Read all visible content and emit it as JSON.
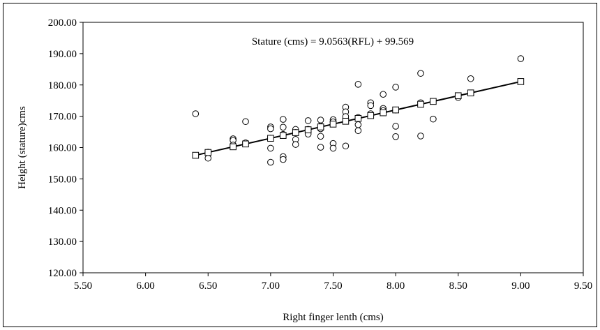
{
  "chart_data": {
    "type": "scatter",
    "title": "",
    "xlabel": "Right finger lenth (cms)",
    "ylabel": "Height (stature)cms",
    "xlim": [
      5.5,
      9.5
    ],
    "ylim": [
      120,
      200
    ],
    "x_ticks": [
      "5.50",
      "6.00",
      "6.50",
      "7.00",
      "7.50",
      "8.00",
      "8.50",
      "9.00",
      "9.50"
    ],
    "y_ticks": [
      "120.00",
      "130.00",
      "140.00",
      "150.00",
      "160.00",
      "170.00",
      "180.00",
      "190.00",
      "200.00"
    ],
    "grid": false,
    "legend": "none",
    "annotation": "Stature (cms) = 9.0563(RFL) + 99.569",
    "regression": {
      "slope": 9.0563,
      "intercept": 99.569
    },
    "series": [
      {
        "marker": "circle",
        "points": [
          [
            6.4,
            170.8
          ],
          [
            6.5,
            156.6
          ],
          [
            6.5,
            158.5
          ],
          [
            6.7,
            162.8
          ],
          [
            6.7,
            162.3
          ],
          [
            6.7,
            160.8
          ],
          [
            6.8,
            168.3
          ],
          [
            6.8,
            161.5
          ],
          [
            7.0,
            166.6
          ],
          [
            7.0,
            166.0
          ],
          [
            7.0,
            163.0
          ],
          [
            7.0,
            159.8
          ],
          [
            7.0,
            155.3
          ],
          [
            7.1,
            169.0
          ],
          [
            7.1,
            166.5
          ],
          [
            7.1,
            164.2
          ],
          [
            7.1,
            157.1
          ],
          [
            7.1,
            156.2
          ],
          [
            7.2,
            165.8
          ],
          [
            7.2,
            164.8
          ],
          [
            7.2,
            162.6
          ],
          [
            7.2,
            161.0
          ],
          [
            7.3,
            168.6
          ],
          [
            7.3,
            165.8
          ],
          [
            7.3,
            165.0
          ],
          [
            7.3,
            164.3
          ],
          [
            7.4,
            168.8
          ],
          [
            7.4,
            166.9
          ],
          [
            7.4,
            166.0
          ],
          [
            7.4,
            163.6
          ],
          [
            7.4,
            160.1
          ],
          [
            7.5,
            168.9
          ],
          [
            7.5,
            168.2
          ],
          [
            7.5,
            161.3
          ],
          [
            7.5,
            159.8
          ],
          [
            7.6,
            172.9
          ],
          [
            7.6,
            171.4
          ],
          [
            7.6,
            169.9
          ],
          [
            7.6,
            160.5
          ],
          [
            7.7,
            180.2
          ],
          [
            7.7,
            169.6
          ],
          [
            7.7,
            167.3
          ],
          [
            7.7,
            165.4
          ],
          [
            7.8,
            174.3
          ],
          [
            7.8,
            173.4
          ],
          [
            7.8,
            170.8
          ],
          [
            7.9,
            177.0
          ],
          [
            7.9,
            172.5
          ],
          [
            7.9,
            171.8
          ],
          [
            8.0,
            179.3
          ],
          [
            8.0,
            172.0
          ],
          [
            8.0,
            166.8
          ],
          [
            8.0,
            163.5
          ],
          [
            8.2,
            183.7
          ],
          [
            8.2,
            174.3
          ],
          [
            8.2,
            163.7
          ],
          [
            8.3,
            169.1
          ],
          [
            8.5,
            176.5
          ],
          [
            8.5,
            176.0
          ],
          [
            8.6,
            182.0
          ],
          [
            9.0,
            188.4
          ]
        ]
      },
      {
        "marker": "square",
        "points": [
          [
            6.4,
            157.53
          ],
          [
            6.5,
            158.43
          ],
          [
            6.7,
            160.25
          ],
          [
            6.8,
            161.15
          ],
          [
            7.0,
            162.96
          ],
          [
            7.1,
            163.87
          ],
          [
            7.2,
            164.77
          ],
          [
            7.3,
            165.68
          ],
          [
            7.4,
            166.59
          ],
          [
            7.5,
            167.49
          ],
          [
            7.6,
            168.4
          ],
          [
            7.7,
            169.3
          ],
          [
            7.8,
            170.21
          ],
          [
            7.9,
            171.11
          ],
          [
            8.0,
            172.02
          ],
          [
            8.2,
            173.83
          ],
          [
            8.3,
            174.74
          ],
          [
            8.5,
            176.55
          ],
          [
            8.6,
            177.45
          ],
          [
            9.0,
            181.08
          ]
        ]
      }
    ]
  }
}
